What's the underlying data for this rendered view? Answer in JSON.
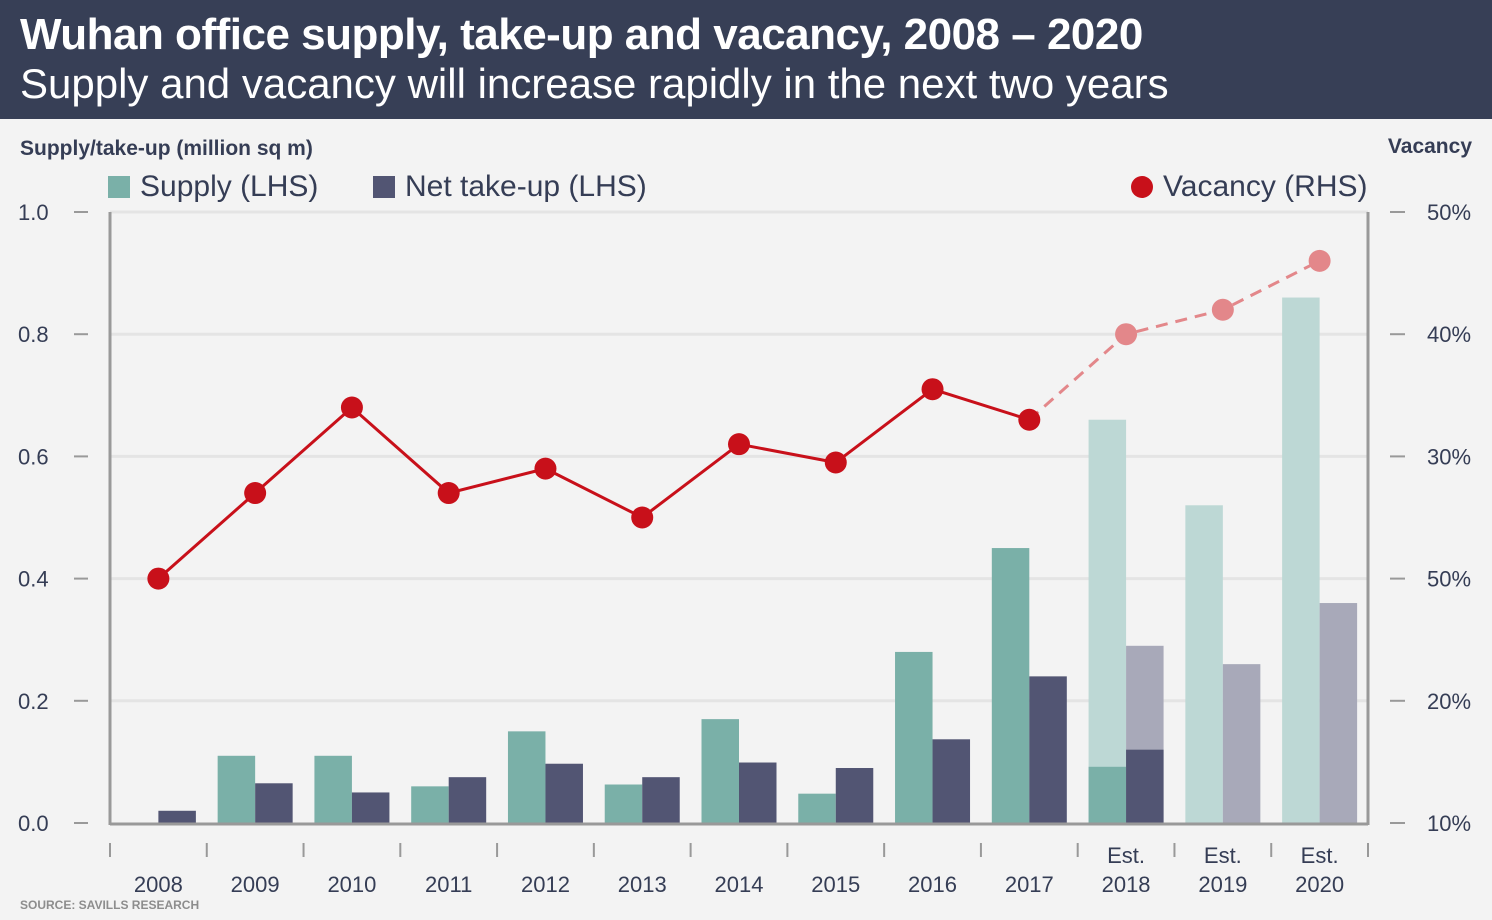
{
  "header": {
    "title": "Wuhan office supply, take-up and vacancy, 2008 – 2020",
    "subtitle": "Supply and vacancy will increase rapidly in the next two years"
  },
  "footer": {
    "source": "SOURCE: SAVILLS RESEARCH"
  },
  "colors": {
    "header_bg": "#373f56",
    "supply": "#7ab0a8",
    "supply_est": "#bdd8d5",
    "takeup": "#525573",
    "takeup_est": "#a8a9b9",
    "vacancy": "#c8101a",
    "vacancy_est": "#e3878a"
  },
  "chart_data": {
    "type": "bar",
    "title": "Wuhan office supply, take-up and vacancy, 2008 – 2020",
    "subtitle": "Supply and vacancy will increase rapidly in the next two years",
    "ylabel": "Supply/take-up (million sq m)",
    "y2label": "Vacancy",
    "ylim": [
      0,
      1.0
    ],
    "yticks": [
      "0.0",
      "0.2",
      "0.4",
      "0.6",
      "0.8",
      "1.0"
    ],
    "y2ticks": [
      "10%",
      "20%",
      "50%",
      "30%",
      "40%",
      "50%"
    ],
    "grid": true,
    "legend": {
      "placement": "top",
      "items": [
        {
          "label": "Supply (LHS)",
          "marker": "square"
        },
        {
          "label": "Net take-up (LHS)",
          "marker": "square"
        },
        {
          "label": "Vacancy (RHS)",
          "marker": "circle"
        }
      ]
    },
    "categories": [
      {
        "top": "",
        "bottom": "2008"
      },
      {
        "top": "",
        "bottom": "2009"
      },
      {
        "top": "",
        "bottom": "2010"
      },
      {
        "top": "",
        "bottom": "2011"
      },
      {
        "top": "",
        "bottom": "2012"
      },
      {
        "top": "",
        "bottom": "2013"
      },
      {
        "top": "",
        "bottom": "2014"
      },
      {
        "top": "",
        "bottom": "2015"
      },
      {
        "top": "",
        "bottom": "2016"
      },
      {
        "top": "",
        "bottom": "2017"
      },
      {
        "top": "Est.",
        "bottom": "2018"
      },
      {
        "top": "Est.",
        "bottom": "2019"
      },
      {
        "top": "Est.",
        "bottom": "2020"
      }
    ],
    "series": [
      {
        "name": "Supply (LHS)",
        "type": "bar",
        "axis": "left",
        "values": [
          0,
          0.11,
          0.11,
          0.06,
          0.15,
          0.063,
          0.17,
          0.048,
          0.28,
          0.45,
          0.66,
          0.52,
          0.86
        ],
        "actual_portion": [
          0,
          0.11,
          0.11,
          0.06,
          0.15,
          0.063,
          0.17,
          0.048,
          0.28,
          0.45,
          0.092,
          0,
          0
        ]
      },
      {
        "name": "Net take-up (LHS)",
        "type": "bar",
        "axis": "left",
        "values": [
          0.02,
          0.065,
          0.05,
          0.075,
          0.097,
          0.075,
          0.099,
          0.09,
          0.137,
          0.24,
          0.29,
          0.26,
          0.36
        ],
        "actual_portion": [
          0.02,
          0.065,
          0.05,
          0.075,
          0.097,
          0.075,
          0.099,
          0.09,
          0.137,
          0.24,
          0.12,
          0,
          0
        ]
      },
      {
        "name": "Vacancy (RHS)",
        "type": "line",
        "axis": "right",
        "unit": "%",
        "values": [
          20,
          27,
          34,
          27,
          29,
          25,
          31,
          29.5,
          35.5,
          33,
          40,
          42,
          46
        ],
        "estimated_from_index": 10
      }
    ]
  }
}
